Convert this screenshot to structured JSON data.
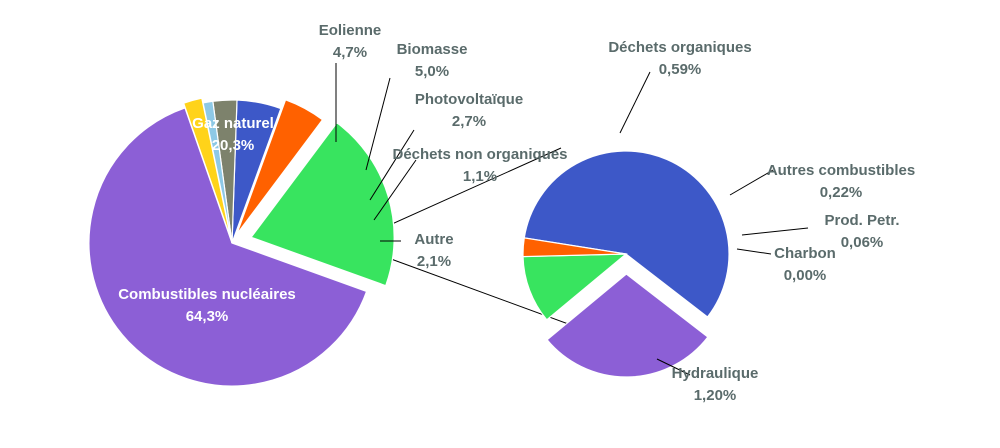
{
  "chart_data": {
    "type": "pie",
    "title": "",
    "main_pie": {
      "slices": [
        {
          "name": "Combustibles nucléaires",
          "value_label": "64,3%",
          "value": 64.3,
          "color": "#8c5fd6"
        },
        {
          "name": "Gaz naturel",
          "value_label": "20,3%",
          "value": 20.3,
          "color": "#38e45f"
        },
        {
          "name": "Eolienne",
          "value_label": "4,7%",
          "value": 4.7,
          "color": "#ff6100"
        },
        {
          "name": "Biomasse",
          "value_label": "5,0%",
          "value": 5.0,
          "color": "#3d58c8"
        },
        {
          "name": "Photovoltaïque",
          "value_label": "2,7%",
          "value": 2.7,
          "color": "#7d826c"
        },
        {
          "name": "Déchets non organiques",
          "value_label": "1,1%",
          "value": 1.1,
          "color": "#8ec9e6"
        },
        {
          "name": "Autre",
          "value_label": "2,1%",
          "value": 2.1,
          "color": "#ffd31a"
        }
      ]
    },
    "detail_pie": {
      "of": "Autre",
      "slices": [
        {
          "name": "Hydraulique",
          "value_label": "1,20%",
          "value": 1.2,
          "color": "#3d58c8"
        },
        {
          "name": "Déchets organiques",
          "value_label": "0,59%",
          "value": 0.59,
          "color": "#8c5fd6"
        },
        {
          "name": "Autres combustibles",
          "value_label": "0,22%",
          "value": 0.22,
          "color": "#38e45f"
        },
        {
          "name": "Prod. Petr.",
          "value_label": "0,06%",
          "value": 0.06,
          "color": "#ff6100"
        },
        {
          "name": "Charbon",
          "value_label": "0,00%",
          "value": 0.0,
          "color": "#ffd31a"
        }
      ]
    }
  }
}
